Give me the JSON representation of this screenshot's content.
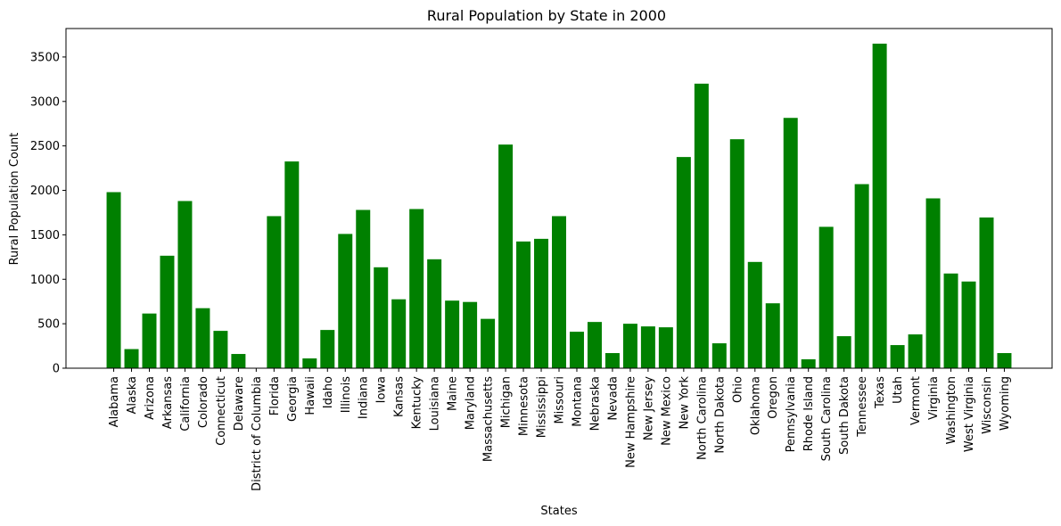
{
  "chart_data": {
    "type": "bar",
    "title": "Rural Population by State in 2000",
    "xlabel": "States",
    "ylabel": "Rural Population Count",
    "ylim": [
      0,
      3820
    ],
    "yticks": [
      0,
      500,
      1000,
      1500,
      2000,
      2500,
      3000,
      3500
    ],
    "grid": false,
    "bar_color": "#008000",
    "categories": [
      "Alabama",
      "Alaska",
      "Arizona",
      "Arkansas",
      "California",
      "Colorado",
      "Connecticut",
      "Delaware",
      "District of Columbia",
      "Florida",
      "Georgia",
      "Hawaii",
      "Idaho",
      "Illinois",
      "Indiana",
      "Iowa",
      "Kansas",
      "Kentucky",
      "Louisiana",
      "Maine",
      "Maryland",
      "Massachusetts",
      "Michigan",
      "Minnesota",
      "Mississippi",
      "Missouri",
      "Montana",
      "Nebraska",
      "Nevada",
      "New Hampshire",
      "New Jersey",
      "New Mexico",
      "New York",
      "North Carolina",
      "North Dakota",
      "Ohio",
      "Oklahoma",
      "Oregon",
      "Pennsylvania",
      "Rhode Island",
      "South Carolina",
      "South Dakota",
      "Tennessee",
      "Texas",
      "Utah",
      "Vermont",
      "Virginia",
      "Washington",
      "West Virginia",
      "Wisconsin",
      "Wyoming"
    ],
    "values": [
      1980,
      215,
      615,
      1265,
      1880,
      675,
      420,
      160,
      0,
      1710,
      2325,
      110,
      430,
      1510,
      1780,
      1135,
      775,
      1790,
      1225,
      760,
      745,
      555,
      2515,
      1425,
      1455,
      1710,
      410,
      520,
      170,
      500,
      470,
      460,
      2375,
      3200,
      280,
      2575,
      1195,
      730,
      2815,
      100,
      1590,
      360,
      2070,
      3650,
      260,
      380,
      1910,
      1065,
      975,
      1695,
      170
    ]
  }
}
